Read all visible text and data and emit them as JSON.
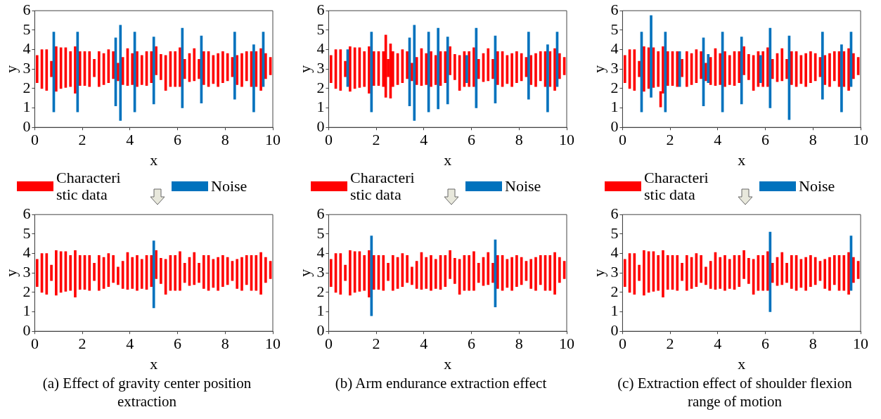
{
  "chart_data": [
    {
      "type": "bar",
      "xlabel": "x",
      "ylabel": "y",
      "xlim": [
        0,
        10
      ],
      "xticks": [
        0,
        2,
        4,
        6,
        8,
        10
      ],
      "ylim": [
        0,
        6
      ],
      "yticks": [
        0,
        1,
        2,
        3,
        4,
        5,
        6
      ],
      "legend": "bottom",
      "series": [
        {
          "name": "Characteristic data",
          "color": "#ff0000",
          "x": [
            0.1,
            0.3,
            0.5,
            0.7,
            0.9,
            1.1,
            1.3,
            1.5,
            1.7,
            1.9,
            2.1,
            2.3,
            2.5,
            2.7,
            2.9,
            3.1,
            3.3,
            3.5,
            3.7,
            3.9,
            4.1,
            4.3,
            4.5,
            4.7,
            4.9,
            5.1,
            5.3,
            5.5,
            5.7,
            5.9,
            6.1,
            6.3,
            6.5,
            6.7,
            6.9,
            7.1,
            7.3,
            7.5,
            7.7,
            7.9,
            8.1,
            8.3,
            8.5,
            8.7,
            8.9,
            9.1,
            9.3,
            9.5,
            9.7,
            9.9
          ],
          "base": [
            2.3,
            2.0,
            1.9,
            2.6,
            1.85,
            2.0,
            2.05,
            2.1,
            1.75,
            2.15,
            2.15,
            2.1,
            2.6,
            2.1,
            2.2,
            2.3,
            2.5,
            2.4,
            2.2,
            2.15,
            2.2,
            2.1,
            2.2,
            2.15,
            2.3,
            2.7,
            2.45,
            1.9,
            2.1,
            2.1,
            2.1,
            2.5,
            2.35,
            2.4,
            2.5,
            2.2,
            2.1,
            2.25,
            2.1,
            2.3,
            2.4,
            2.6,
            2.2,
            2.1,
            2.4,
            2.1,
            2.1,
            1.9,
            2.5,
            2.7
          ],
          "values": [
            1.4,
            2.0,
            2.1,
            0.8,
            2.3,
            2.1,
            2.05,
            1.8,
            2.4,
            1.75,
            1.75,
            1.8,
            0.9,
            1.8,
            1.6,
            1.7,
            1.4,
            0.9,
            1.4,
            1.9,
            1.6,
            1.8,
            1.5,
            1.75,
            1.6,
            1.45,
            1.3,
            1.8,
            1.8,
            1.8,
            2.0,
            1.0,
            1.45,
            1.65,
            1.0,
            1.7,
            1.8,
            1.45,
            1.7,
            1.6,
            1.4,
            1.0,
            1.5,
            1.7,
            1.5,
            1.8,
            1.8,
            2.15,
            1.3,
            0.9
          ]
        },
        {
          "name": "Noise",
          "color": "#0072bd",
          "x": [
            0.8,
            1.8,
            3.4,
            3.6,
            4.2,
            5.0,
            6.2,
            7.0,
            8.4,
            9.2,
            9.6
          ],
          "base": [
            0.8,
            0.8,
            1.1,
            0.35,
            0.8,
            1.2,
            1.0,
            1.25,
            1.45,
            0.8,
            2.1
          ],
          "values": [
            4.1,
            4.1,
            3.5,
            4.9,
            4.1,
            3.45,
            4.1,
            3.45,
            3.45,
            3.45,
            2.8
          ]
        }
      ]
    },
    {
      "type": "bar",
      "xlabel": "x",
      "ylabel": "y",
      "xlim": [
        0,
        10
      ],
      "xticks": [
        0,
        2,
        4,
        6,
        8,
        10
      ],
      "ylim": [
        0,
        6
      ],
      "yticks": [
        0,
        1,
        2,
        3,
        4,
        5,
        6
      ],
      "legend": "bottom",
      "series": [
        {
          "name": "Characteristic data",
          "color": "#ff0000",
          "x": [
            0.1,
            0.3,
            0.5,
            0.7,
            0.9,
            1.1,
            1.3,
            1.5,
            1.7,
            1.9,
            2.1,
            2.3,
            2.4,
            2.5,
            2.6,
            2.7,
            2.9,
            3.1,
            3.3,
            3.5,
            3.7,
            3.9,
            4.1,
            4.3,
            4.5,
            4.7,
            4.9,
            5.1,
            5.3,
            5.5,
            5.7,
            5.9,
            6.1,
            6.3,
            6.5,
            6.7,
            6.9,
            7.1,
            7.3,
            7.5,
            7.7,
            7.9,
            8.1,
            8.3,
            8.5,
            8.7,
            8.9,
            9.1,
            9.3,
            9.5,
            9.7,
            9.9
          ],
          "base": [
            2.3,
            2.0,
            1.9,
            2.6,
            1.85,
            2.0,
            2.05,
            2.1,
            1.75,
            2.15,
            2.15,
            2.1,
            1.55,
            2.6,
            1.5,
            2.1,
            2.2,
            2.3,
            2.5,
            2.4,
            2.2,
            2.15,
            2.2,
            2.1,
            2.2,
            2.15,
            2.3,
            2.7,
            2.45,
            1.9,
            2.1,
            2.1,
            2.1,
            2.5,
            2.35,
            2.4,
            2.5,
            2.2,
            2.1,
            2.25,
            2.1,
            2.3,
            2.4,
            2.6,
            2.2,
            2.1,
            2.4,
            2.1,
            2.1,
            1.9,
            2.5,
            2.7
          ],
          "values": [
            1.4,
            2.0,
            2.1,
            0.8,
            2.3,
            2.1,
            2.05,
            1.8,
            2.4,
            1.75,
            1.75,
            1.8,
            3.2,
            0.9,
            2.8,
            1.8,
            1.6,
            1.7,
            1.4,
            0.9,
            1.4,
            1.9,
            1.6,
            1.8,
            1.5,
            1.75,
            1.6,
            1.45,
            1.3,
            1.8,
            1.8,
            1.8,
            2.0,
            1.0,
            1.45,
            1.65,
            1.0,
            1.7,
            1.8,
            1.45,
            1.7,
            1.6,
            1.4,
            1.0,
            1.5,
            1.7,
            1.5,
            1.8,
            1.8,
            2.15,
            1.3,
            0.9
          ]
        },
        {
          "name": "Noise",
          "color": "#0072bd",
          "x": [
            0.8,
            1.8,
            3.4,
            3.6,
            4.2,
            4.6,
            5.0,
            5.8,
            6.2,
            7.0,
            8.4,
            9.2,
            9.6
          ],
          "base": [
            2.1,
            0.8,
            1.1,
            0.35,
            0.8,
            0.95,
            1.2,
            2.3,
            1.0,
            1.25,
            1.45,
            0.8,
            2.1
          ],
          "values": [
            1.9,
            4.1,
            3.5,
            4.9,
            4.1,
            4.15,
            3.45,
            1.4,
            4.1,
            3.45,
            3.45,
            3.45,
            2.8
          ]
        }
      ]
    },
    {
      "type": "bar",
      "xlabel": "x",
      "ylabel": "y",
      "xlim": [
        0,
        10
      ],
      "xticks": [
        0,
        2,
        4,
        6,
        8,
        10
      ],
      "ylim": [
        0,
        6
      ],
      "yticks": [
        0,
        1,
        2,
        3,
        4,
        5,
        6
      ],
      "legend": "bottom",
      "series": [
        {
          "name": "Characteristic data",
          "color": "#ff0000",
          "x": [
            0.1,
            0.3,
            0.5,
            0.7,
            0.9,
            1.1,
            1.3,
            1.5,
            1.6,
            1.7,
            1.9,
            2.1,
            2.3,
            2.5,
            2.7,
            2.9,
            3.1,
            3.3,
            3.5,
            3.7,
            3.9,
            4.1,
            4.3,
            4.5,
            4.7,
            4.9,
            5.1,
            5.3,
            5.5,
            5.7,
            5.9,
            6.1,
            6.3,
            6.5,
            6.7,
            6.9,
            7.1,
            7.3,
            7.5,
            7.7,
            7.9,
            8.1,
            8.3,
            8.5,
            8.7,
            8.9,
            9.1,
            9.3,
            9.5,
            9.7,
            9.9
          ],
          "base": [
            2.3,
            2.0,
            1.9,
            2.6,
            1.85,
            2.0,
            2.05,
            2.1,
            1.05,
            1.75,
            2.15,
            2.15,
            2.1,
            2.6,
            2.1,
            2.2,
            2.3,
            2.5,
            2.4,
            2.2,
            2.15,
            2.2,
            2.1,
            2.2,
            2.15,
            2.3,
            2.7,
            2.45,
            1.9,
            2.1,
            2.1,
            2.1,
            2.5,
            2.35,
            2.4,
            2.5,
            2.2,
            2.1,
            2.25,
            2.1,
            2.3,
            2.4,
            2.6,
            2.2,
            2.1,
            2.4,
            2.1,
            2.1,
            1.9,
            2.5,
            2.7
          ],
          "values": [
            1.4,
            2.0,
            2.1,
            0.8,
            2.3,
            2.1,
            2.05,
            1.8,
            0.8,
            2.4,
            1.75,
            1.75,
            1.8,
            0.9,
            1.8,
            1.6,
            1.7,
            1.4,
            0.9,
            1.4,
            1.9,
            1.6,
            1.8,
            1.5,
            1.75,
            1.6,
            1.45,
            1.3,
            1.8,
            1.8,
            1.8,
            2.0,
            1.0,
            1.45,
            1.65,
            1.0,
            1.7,
            1.8,
            1.45,
            1.7,
            1.6,
            1.4,
            1.0,
            1.5,
            1.7,
            1.5,
            1.8,
            1.8,
            2.15,
            1.3,
            0.9
          ]
        },
        {
          "name": "Noise",
          "color": "#0072bd",
          "x": [
            0.8,
            1.2,
            1.8,
            2.4,
            3.4,
            3.6,
            4.2,
            5.0,
            5.8,
            6.2,
            7.0,
            8.4,
            9.2,
            9.6
          ],
          "base": [
            0.8,
            1.55,
            0.8,
            2.1,
            1.1,
            2.3,
            0.8,
            1.2,
            2.3,
            1.0,
            0.4,
            1.45,
            0.8,
            2.1
          ],
          "values": [
            4.1,
            4.2,
            4.1,
            1.8,
            3.5,
            1.45,
            4.1,
            3.45,
            1.4,
            4.1,
            4.3,
            3.45,
            3.45,
            2.8
          ]
        }
      ]
    },
    {
      "type": "bar",
      "xlabel": "x",
      "ylabel": "y",
      "xlim": [
        0,
        10
      ],
      "xticks": [
        0,
        2,
        4,
        6,
        8,
        10
      ],
      "ylim": [
        0,
        6
      ],
      "yticks": [
        0,
        1,
        2,
        3,
        4,
        5,
        6
      ],
      "annotations": [
        "(a) Effect of gravity center position extraction"
      ],
      "series": [
        {
          "color": "#ff0000",
          "x": [
            0.1,
            0.3,
            0.5,
            0.7,
            0.9,
            1.1,
            1.3,
            1.5,
            1.7,
            1.9,
            2.1,
            2.3,
            2.5,
            2.7,
            2.9,
            3.1,
            3.3,
            3.5,
            3.7,
            3.9,
            4.1,
            4.3,
            4.5,
            4.7,
            4.9,
            5.1,
            5.3,
            5.5,
            5.7,
            5.9,
            6.1,
            6.3,
            6.5,
            6.7,
            6.9,
            7.1,
            7.3,
            7.5,
            7.7,
            7.9,
            8.1,
            8.3,
            8.5,
            8.7,
            8.9,
            9.1,
            9.3,
            9.5,
            9.7,
            9.9
          ],
          "base": [
            2.3,
            2.0,
            1.9,
            2.6,
            1.85,
            2.0,
            2.05,
            2.1,
            1.75,
            2.15,
            2.15,
            2.1,
            2.6,
            2.1,
            2.2,
            2.3,
            2.5,
            2.4,
            2.2,
            2.15,
            2.2,
            2.1,
            2.2,
            2.15,
            2.3,
            2.7,
            2.45,
            1.9,
            2.1,
            2.1,
            2.1,
            2.5,
            2.35,
            2.4,
            2.5,
            2.2,
            2.1,
            2.25,
            2.1,
            2.3,
            2.4,
            2.6,
            2.2,
            2.1,
            2.4,
            2.1,
            2.1,
            1.9,
            2.5,
            2.7
          ],
          "values": [
            1.4,
            2.0,
            2.1,
            0.8,
            2.3,
            2.1,
            2.05,
            1.8,
            2.4,
            1.75,
            1.75,
            1.8,
            0.9,
            1.8,
            1.6,
            1.7,
            1.4,
            0.9,
            1.4,
            1.9,
            1.6,
            1.8,
            1.5,
            1.75,
            1.6,
            1.45,
            1.3,
            1.8,
            1.8,
            1.8,
            2.0,
            1.0,
            1.45,
            1.65,
            1.0,
            1.7,
            1.8,
            1.45,
            1.7,
            1.6,
            1.4,
            1.0,
            1.5,
            1.7,
            1.5,
            1.8,
            1.8,
            2.15,
            1.3,
            0.9
          ]
        },
        {
          "color": "#0072bd",
          "x": [
            5.0
          ],
          "base": [
            1.2
          ],
          "values": [
            3.45
          ]
        }
      ]
    },
    {
      "type": "bar",
      "xlabel": "x",
      "ylabel": "y",
      "xlim": [
        0,
        10
      ],
      "xticks": [
        0,
        2,
        4,
        6,
        8,
        10
      ],
      "ylim": [
        0,
        6
      ],
      "yticks": [
        0,
        1,
        2,
        3,
        4,
        5,
        6
      ],
      "annotations": [
        "(b) Arm endurance extraction effect"
      ],
      "series": [
        {
          "color": "#ff0000",
          "x": [
            0.1,
            0.3,
            0.5,
            0.7,
            0.9,
            1.1,
            1.3,
            1.5,
            1.7,
            1.9,
            2.1,
            2.3,
            2.5,
            2.7,
            2.9,
            3.1,
            3.3,
            3.5,
            3.7,
            3.9,
            4.1,
            4.3,
            4.5,
            4.7,
            4.9,
            5.1,
            5.3,
            5.5,
            5.7,
            5.9,
            6.1,
            6.3,
            6.5,
            6.7,
            6.9,
            7.1,
            7.3,
            7.5,
            7.7,
            7.9,
            8.1,
            8.3,
            8.5,
            8.7,
            8.9,
            9.1,
            9.3,
            9.5,
            9.7,
            9.9
          ],
          "base": [
            2.3,
            2.0,
            1.9,
            2.6,
            1.85,
            2.0,
            2.05,
            2.1,
            1.75,
            2.15,
            2.15,
            2.1,
            2.6,
            2.1,
            2.2,
            2.3,
            2.5,
            2.4,
            2.2,
            2.15,
            2.2,
            2.1,
            2.2,
            2.15,
            2.3,
            2.7,
            2.45,
            1.9,
            2.1,
            2.1,
            2.1,
            2.5,
            2.35,
            2.4,
            2.5,
            2.2,
            2.1,
            2.25,
            2.1,
            2.3,
            2.4,
            2.6,
            2.2,
            2.1,
            2.4,
            2.1,
            2.1,
            1.9,
            2.5,
            2.7
          ],
          "values": [
            1.4,
            2.0,
            2.1,
            0.8,
            2.3,
            2.1,
            2.05,
            1.8,
            2.4,
            1.75,
            1.75,
            1.8,
            0.9,
            1.8,
            1.6,
            1.7,
            1.4,
            0.9,
            1.4,
            1.9,
            1.6,
            1.8,
            1.5,
            1.75,
            1.6,
            1.45,
            1.3,
            1.8,
            1.8,
            1.8,
            2.0,
            1.0,
            1.45,
            1.65,
            1.0,
            1.7,
            1.8,
            1.45,
            1.7,
            1.6,
            1.4,
            1.0,
            1.5,
            1.7,
            1.5,
            1.8,
            1.8,
            2.15,
            1.3,
            0.9
          ]
        },
        {
          "color": "#0072bd",
          "x": [
            1.8,
            7.0
          ],
          "base": [
            0.8,
            1.25
          ],
          "values": [
            4.1,
            3.45
          ]
        }
      ]
    },
    {
      "type": "bar",
      "xlabel": "x",
      "ylabel": "y",
      "xlim": [
        0,
        10
      ],
      "xticks": [
        0,
        2,
        4,
        6,
        8,
        10
      ],
      "ylim": [
        0,
        6
      ],
      "yticks": [
        0,
        1,
        2,
        3,
        4,
        5,
        6
      ],
      "annotations": [
        "(c) Extraction effect of shoulder flexion range of motion"
      ],
      "series": [
        {
          "color": "#ff0000",
          "x": [
            0.1,
            0.3,
            0.5,
            0.7,
            0.9,
            1.1,
            1.3,
            1.5,
            1.7,
            1.9,
            2.1,
            2.3,
            2.5,
            2.7,
            2.9,
            3.1,
            3.3,
            3.5,
            3.7,
            3.9,
            4.1,
            4.3,
            4.5,
            4.7,
            4.9,
            5.1,
            5.3,
            5.5,
            5.7,
            5.9,
            6.1,
            6.3,
            6.5,
            6.7,
            6.9,
            7.1,
            7.3,
            7.5,
            7.7,
            7.9,
            8.1,
            8.3,
            8.5,
            8.7,
            8.9,
            9.1,
            9.3,
            9.5,
            9.7,
            9.9
          ],
          "base": [
            2.3,
            2.0,
            1.9,
            2.6,
            1.85,
            2.0,
            2.05,
            2.1,
            1.75,
            2.15,
            2.15,
            2.1,
            2.6,
            2.1,
            2.2,
            2.3,
            2.5,
            2.4,
            2.2,
            2.15,
            2.2,
            2.1,
            2.2,
            2.15,
            2.3,
            2.7,
            2.45,
            1.9,
            2.1,
            2.1,
            2.1,
            2.5,
            2.35,
            2.4,
            2.5,
            2.2,
            2.1,
            2.25,
            2.1,
            2.3,
            2.4,
            2.6,
            2.2,
            2.1,
            2.4,
            2.1,
            2.1,
            1.9,
            2.5,
            2.7
          ],
          "values": [
            1.4,
            2.0,
            2.1,
            0.8,
            2.3,
            2.1,
            2.05,
            1.8,
            2.4,
            1.75,
            1.75,
            1.8,
            0.9,
            1.8,
            1.6,
            1.7,
            1.4,
            0.9,
            1.4,
            1.9,
            1.6,
            1.8,
            1.5,
            1.75,
            1.6,
            1.45,
            1.3,
            1.8,
            1.8,
            1.8,
            2.0,
            1.0,
            1.45,
            1.65,
            1.0,
            1.7,
            1.8,
            1.45,
            1.7,
            1.6,
            1.4,
            1.0,
            1.5,
            1.7,
            1.5,
            1.8,
            1.8,
            2.15,
            1.3,
            0.9
          ]
        },
        {
          "color": "#0072bd",
          "x": [
            6.2,
            9.6
          ],
          "base": [
            1.0,
            2.1
          ],
          "values": [
            4.1,
            2.8
          ]
        }
      ]
    }
  ]
}
